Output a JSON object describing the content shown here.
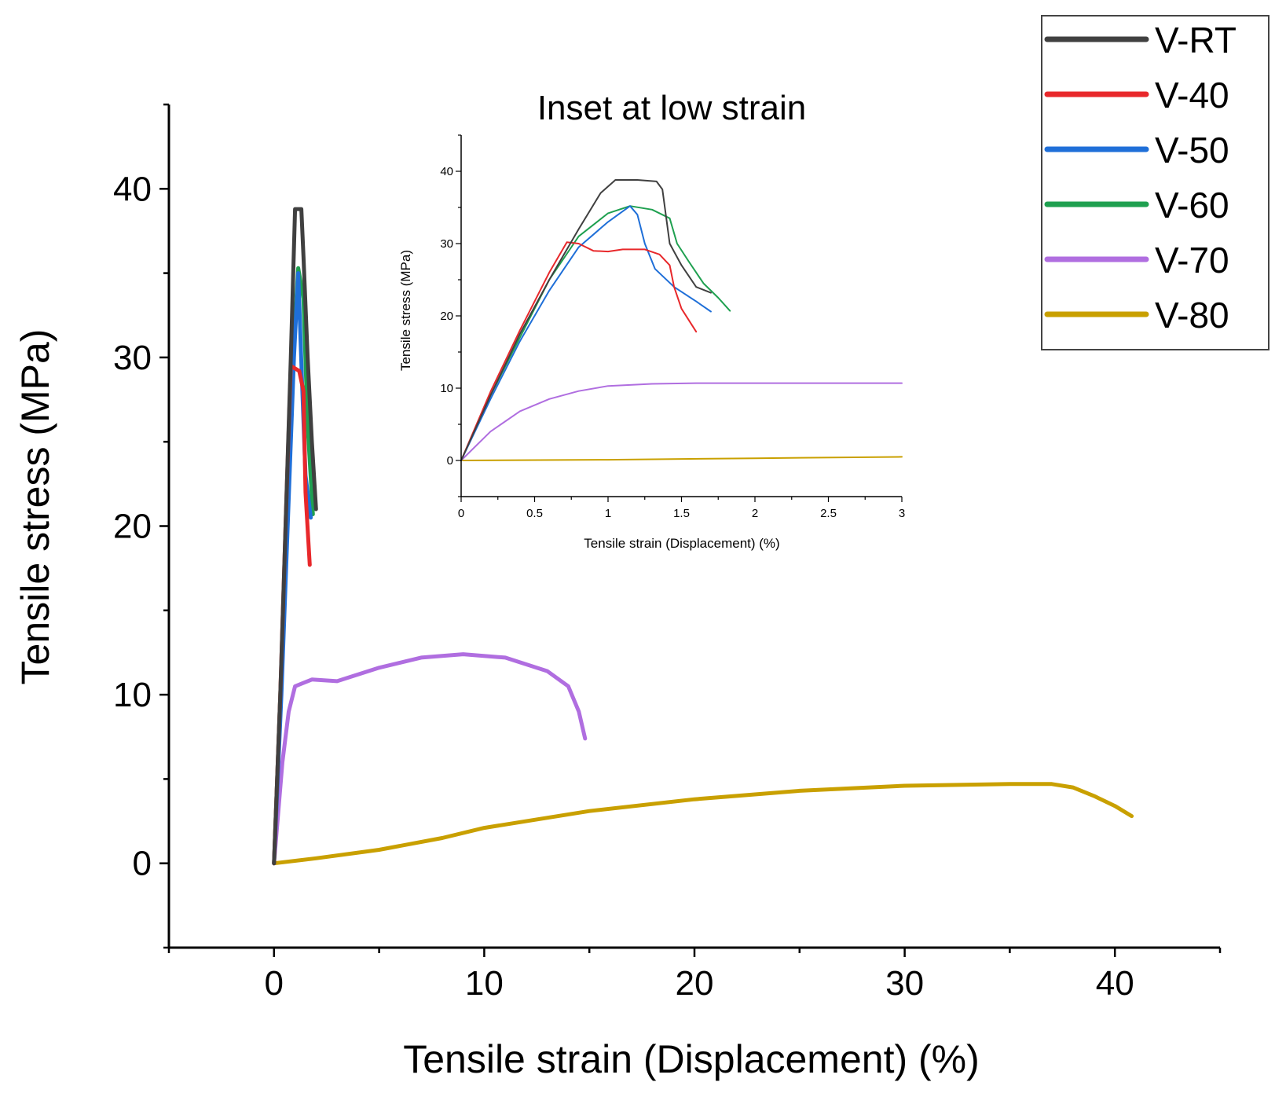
{
  "chart_data": [
    {
      "type": "line",
      "xlabel": "Tensile strain (Displacement) (%)",
      "ylabel": "Tensile stress (MPa)",
      "xlim": [
        -5,
        45
      ],
      "ylim": [
        -5,
        45
      ],
      "xticks": [
        0,
        10,
        20,
        30,
        40
      ],
      "yticks": [
        0,
        10,
        20,
        30,
        40
      ],
      "legend_position": "top-right",
      "series": [
        {
          "name": "V-RT",
          "color": "#404040",
          "points": [
            [
              0,
              0
            ],
            [
              0.3,
              10
            ],
            [
              0.55,
              20
            ],
            [
              0.8,
              30
            ],
            [
              1.0,
              38.8
            ],
            [
              1.3,
              38.8
            ],
            [
              1.4,
              36
            ],
            [
              1.6,
              30
            ],
            [
              1.8,
              25
            ],
            [
              2.0,
              21
            ]
          ]
        },
        {
          "name": "V-40",
          "color": "#e8282b",
          "points": [
            [
              0,
              0
            ],
            [
              0.3,
              10
            ],
            [
              0.55,
              20
            ],
            [
              0.8,
              29.5
            ],
            [
              1.2,
              29.2
            ],
            [
              1.4,
              28
            ],
            [
              1.5,
              22
            ],
            [
              1.7,
              17.7
            ]
          ]
        },
        {
          "name": "V-50",
          "color": "#1f6fd8",
          "points": [
            [
              0,
              0
            ],
            [
              0.35,
              10
            ],
            [
              0.65,
              20
            ],
            [
              0.95,
              30
            ],
            [
              1.15,
              35
            ],
            [
              1.35,
              28
            ],
            [
              1.5,
              23
            ],
            [
              1.75,
              20.5
            ]
          ]
        },
        {
          "name": "V-60",
          "color": "#1fa050",
          "points": [
            [
              0,
              0
            ],
            [
              0.3,
              10
            ],
            [
              0.6,
              20
            ],
            [
              0.9,
              30
            ],
            [
              1.15,
              35.3
            ],
            [
              1.4,
              33.5
            ],
            [
              1.6,
              26
            ],
            [
              1.85,
              20.7
            ]
          ]
        },
        {
          "name": "V-70",
          "color": "#b06ee0",
          "points": [
            [
              0,
              0
            ],
            [
              0.4,
              6
            ],
            [
              0.7,
              9
            ],
            [
              1.0,
              10.5
            ],
            [
              1.8,
              10.9
            ],
            [
              3.0,
              10.8
            ],
            [
              5.0,
              11.6
            ],
            [
              7.0,
              12.2
            ],
            [
              9.0,
              12.4
            ],
            [
              11.0,
              12.2
            ],
            [
              13.0,
              11.4
            ],
            [
              14.0,
              10.5
            ],
            [
              14.5,
              9
            ],
            [
              14.8,
              7.4
            ]
          ]
        },
        {
          "name": "V-80",
          "color": "#c9a000",
          "points": [
            [
              0,
              0
            ],
            [
              2,
              0.3
            ],
            [
              5,
              0.8
            ],
            [
              8,
              1.5
            ],
            [
              10,
              2.1
            ],
            [
              15,
              3.1
            ],
            [
              20,
              3.8
            ],
            [
              25,
              4.3
            ],
            [
              30,
              4.6
            ],
            [
              35,
              4.7
            ],
            [
              37,
              4.7
            ],
            [
              38,
              4.5
            ],
            [
              39,
              4.0
            ],
            [
              40,
              3.4
            ],
            [
              40.8,
              2.8
            ]
          ]
        }
      ]
    },
    {
      "type": "line",
      "title": "Inset at low strain",
      "xlabel": "Tensile strain (Displacement) (%)",
      "ylabel": "Tensile stress (MPa)",
      "xlim": [
        0,
        3
      ],
      "ylim": [
        -5,
        45
      ],
      "xticks": [
        0,
        0.5,
        1,
        1.5,
        2,
        2.5,
        3
      ],
      "xtick_labels": [
        "0",
        "0.5",
        "1",
        "1.5",
        "2",
        "2.5",
        "3"
      ],
      "yticks": [
        0,
        10,
        20,
        30,
        40
      ],
      "series": [
        {
          "name": "V-RT",
          "color": "#404040",
          "points": [
            [
              0,
              0
            ],
            [
              0.2,
              9
            ],
            [
              0.4,
              17.5
            ],
            [
              0.6,
              25
            ],
            [
              0.8,
              32
            ],
            [
              0.95,
              37
            ],
            [
              1.05,
              38.8
            ],
            [
              1.2,
              38.8
            ],
            [
              1.33,
              38.6
            ],
            [
              1.37,
              37.5
            ],
            [
              1.42,
              30
            ],
            [
              1.5,
              27
            ],
            [
              1.6,
              24
            ],
            [
              1.7,
              23.2
            ]
          ]
        },
        {
          "name": "V-40",
          "color": "#e8282b",
          "points": [
            [
              0,
              0
            ],
            [
              0.2,
              9.5
            ],
            [
              0.4,
              18
            ],
            [
              0.6,
              26
            ],
            [
              0.72,
              30.2
            ],
            [
              0.8,
              30
            ],
            [
              0.9,
              29
            ],
            [
              1.0,
              28.9
            ],
            [
              1.1,
              29.2
            ],
            [
              1.25,
              29.2
            ],
            [
              1.35,
              28.5
            ],
            [
              1.42,
              27
            ],
            [
              1.45,
              24
            ],
            [
              1.5,
              21
            ],
            [
              1.6,
              17.8
            ]
          ]
        },
        {
          "name": "V-50",
          "color": "#1f6fd8",
          "points": [
            [
              0,
              0
            ],
            [
              0.2,
              8.5
            ],
            [
              0.4,
              16.5
            ],
            [
              0.6,
              23.5
            ],
            [
              0.8,
              29.5
            ],
            [
              1.0,
              33
            ],
            [
              1.15,
              35.2
            ],
            [
              1.2,
              34
            ],
            [
              1.25,
              30
            ],
            [
              1.32,
              26.5
            ],
            [
              1.45,
              24
            ],
            [
              1.6,
              22
            ],
            [
              1.7,
              20.6
            ]
          ]
        },
        {
          "name": "V-60",
          "color": "#1fa050",
          "points": [
            [
              0,
              0
            ],
            [
              0.2,
              9
            ],
            [
              0.4,
              17
            ],
            [
              0.6,
              25
            ],
            [
              0.8,
              31
            ],
            [
              1.0,
              34.2
            ],
            [
              1.15,
              35.2
            ],
            [
              1.3,
              34.7
            ],
            [
              1.42,
              33.5
            ],
            [
              1.47,
              30
            ],
            [
              1.55,
              27.5
            ],
            [
              1.65,
              24.5
            ],
            [
              1.75,
              22.5
            ],
            [
              1.83,
              20.7
            ]
          ]
        },
        {
          "name": "V-70",
          "color": "#b06ee0",
          "points": [
            [
              0,
              0
            ],
            [
              0.2,
              4
            ],
            [
              0.4,
              6.8
            ],
            [
              0.6,
              8.5
            ],
            [
              0.8,
              9.6
            ],
            [
              1.0,
              10.3
            ],
            [
              1.3,
              10.6
            ],
            [
              1.6,
              10.7
            ],
            [
              2.0,
              10.7
            ],
            [
              2.5,
              10.7
            ],
            [
              3.0,
              10.7
            ]
          ]
        },
        {
          "name": "V-80",
          "color": "#c9a000",
          "points": [
            [
              0,
              0
            ],
            [
              1,
              0.1
            ],
            [
              2,
              0.3
            ],
            [
              3,
              0.5
            ]
          ]
        }
      ]
    }
  ],
  "legend": {
    "entries": [
      "V-RT",
      "V-40",
      "V-50",
      "V-60",
      "V-70",
      "V-80"
    ]
  }
}
